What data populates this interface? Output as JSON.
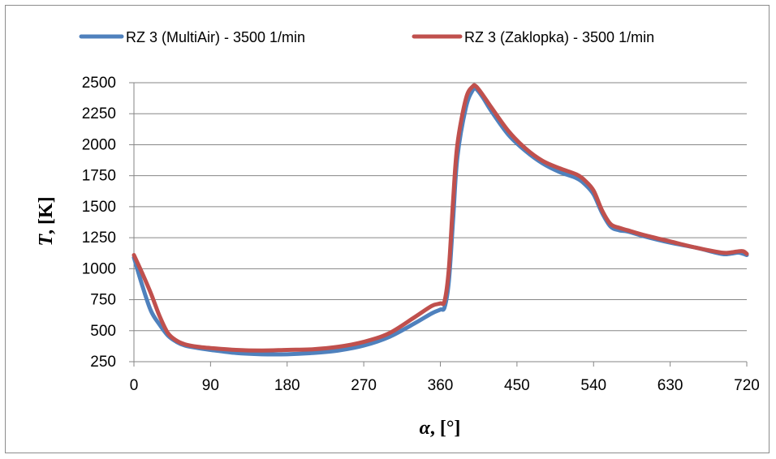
{
  "chart_data": {
    "type": "line",
    "title": "",
    "xlabel_var": "α",
    "xlabel_unit": ", [°]",
    "ylabel_var": "T",
    "ylabel_unit": ", [K]",
    "xlim": [
      0,
      720
    ],
    "ylim": [
      250,
      2500
    ],
    "xticks": [
      0,
      90,
      180,
      270,
      360,
      450,
      540,
      630,
      720
    ],
    "yticks": [
      250,
      500,
      750,
      1000,
      1250,
      1500,
      1750,
      2000,
      2250,
      2500
    ],
    "grid": true,
    "legend_position": "top",
    "series": [
      {
        "name": "RZ 3 (MultiAir) - 3500 1/min",
        "color": "#4f81bd",
        "x": [
          0,
          10,
          20,
          30,
          40,
          50,
          60,
          75,
          90,
          120,
          150,
          180,
          210,
          240,
          270,
          300,
          330,
          350,
          360,
          365,
          370,
          375,
          380,
          390,
          398,
          402,
          410,
          420,
          440,
          460,
          480,
          500,
          520,
          530,
          540,
          550,
          560,
          570,
          580,
          600,
          630,
          660,
          690,
          700,
          710,
          716,
          720
        ],
        "y": [
          1090,
          860,
          660,
          550,
          460,
          410,
          380,
          360,
          345,
          320,
          310,
          310,
          320,
          340,
          380,
          450,
          560,
          640,
          670,
          690,
          900,
          1400,
          1900,
          2300,
          2440,
          2450,
          2380,
          2270,
          2080,
          1950,
          1850,
          1780,
          1730,
          1680,
          1600,
          1450,
          1340,
          1310,
          1300,
          1260,
          1210,
          1170,
          1120,
          1120,
          1130,
          1120,
          1110
        ]
      },
      {
        "name": "RZ 3 (Zaklopka) - 3500 1/min",
        "color": "#c0504d",
        "x": [
          0,
          10,
          20,
          30,
          40,
          50,
          60,
          75,
          90,
          120,
          150,
          180,
          210,
          240,
          270,
          300,
          330,
          350,
          360,
          365,
          370,
          375,
          380,
          390,
          398,
          402,
          410,
          420,
          440,
          460,
          480,
          500,
          520,
          530,
          540,
          550,
          560,
          570,
          580,
          600,
          630,
          660,
          690,
          700,
          710,
          716,
          720
        ],
        "y": [
          1110,
          960,
          800,
          620,
          480,
          420,
          390,
          370,
          360,
          345,
          340,
          345,
          350,
          370,
          410,
          480,
          610,
          700,
          720,
          740,
          1000,
          1550,
          2000,
          2370,
          2470,
          2470,
          2400,
          2300,
          2110,
          1970,
          1870,
          1810,
          1760,
          1710,
          1630,
          1470,
          1360,
          1330,
          1310,
          1270,
          1220,
          1170,
          1130,
          1130,
          1140,
          1140,
          1120
        ]
      }
    ]
  }
}
